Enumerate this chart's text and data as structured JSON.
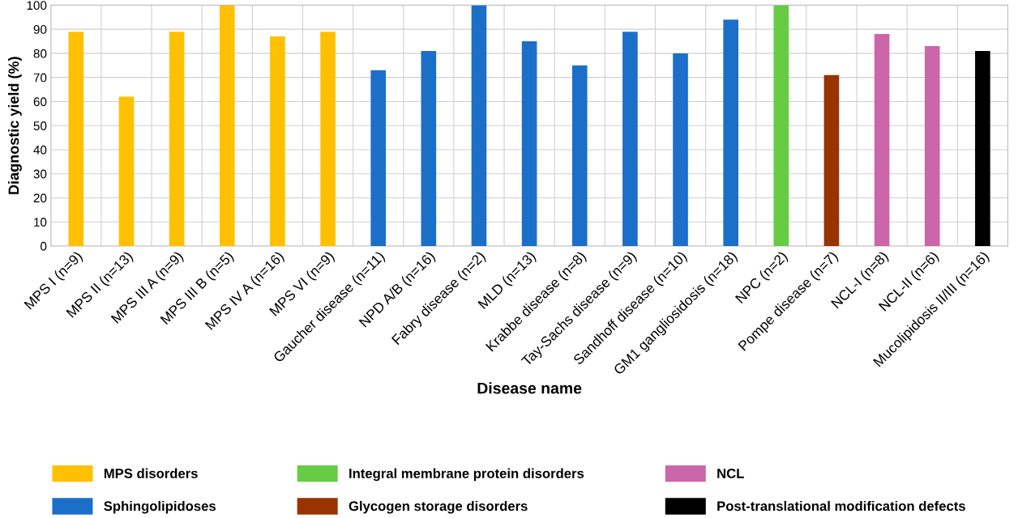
{
  "chart_data": {
    "type": "bar",
    "xlabel": "Disease name",
    "ylabel": "Diagnostic yield (%)",
    "categories": [
      "MPS I (n=9)",
      "MPS II (n=13)",
      "MPS III A (n=9)",
      "MPS III B (n=5)",
      "MPS IV A (n=16)",
      "MPS VI (n=9)",
      "Gaucher disease (n=11)",
      "NPD A/B (n=16)",
      "Fabry disease (n=2)",
      "MLD (n=13)",
      "Krabbe disease (n=8)",
      "Tay-Sachs disease (n=9)",
      "Sandhoff disease (n=10)",
      "GM1 gangliosidosis (n=18)",
      "NPC (n=2)",
      "Pompe disease (n=7)",
      "NCL-I (n=8)",
      "NCL-II (n=6)",
      "Mucolipidosis II/III (n=16)"
    ],
    "stacked": true,
    "series": [
      {
        "name": "MPS disorders",
        "color": "#ffc000",
        "values": [
          89,
          62,
          89,
          100,
          87,
          89,
          null,
          null,
          null,
          null,
          null,
          null,
          null,
          null,
          null,
          null,
          null,
          null,
          null
        ]
      },
      {
        "name": "Sphingolipidoses",
        "color": "#1c6fc8",
        "values": [
          null,
          null,
          null,
          null,
          null,
          null,
          73,
          81,
          100,
          85,
          75,
          89,
          80,
          94,
          null,
          null,
          null,
          null,
          null
        ]
      },
      {
        "name": "Integral membrane protein disorders",
        "color": "#66cc44",
        "values": [
          null,
          null,
          null,
          null,
          null,
          null,
          null,
          null,
          null,
          null,
          null,
          null,
          null,
          null,
          100,
          null,
          null,
          null,
          null
        ]
      },
      {
        "name": "Glycogen storage disorders",
        "color": "#993300",
        "values": [
          null,
          null,
          null,
          null,
          null,
          null,
          null,
          null,
          null,
          null,
          null,
          null,
          null,
          null,
          null,
          71,
          null,
          null,
          null
        ]
      },
      {
        "name": "NCL",
        "color": "#cc66aa",
        "values": [
          null,
          null,
          null,
          null,
          null,
          null,
          null,
          null,
          null,
          null,
          null,
          null,
          null,
          null,
          null,
          null,
          88,
          83,
          null
        ]
      },
      {
        "name": "Post-translational modification defects",
        "color": "#000000",
        "values": [
          null,
          null,
          null,
          null,
          null,
          null,
          null,
          null,
          null,
          null,
          null,
          null,
          null,
          null,
          null,
          null,
          null,
          null,
          81
        ]
      }
    ],
    "ylim": [
      0,
      100
    ],
    "yticks": [
      0,
      10,
      20,
      30,
      40,
      50,
      60,
      70,
      80,
      90,
      100
    ],
    "grid": true,
    "legend": "bottom"
  }
}
